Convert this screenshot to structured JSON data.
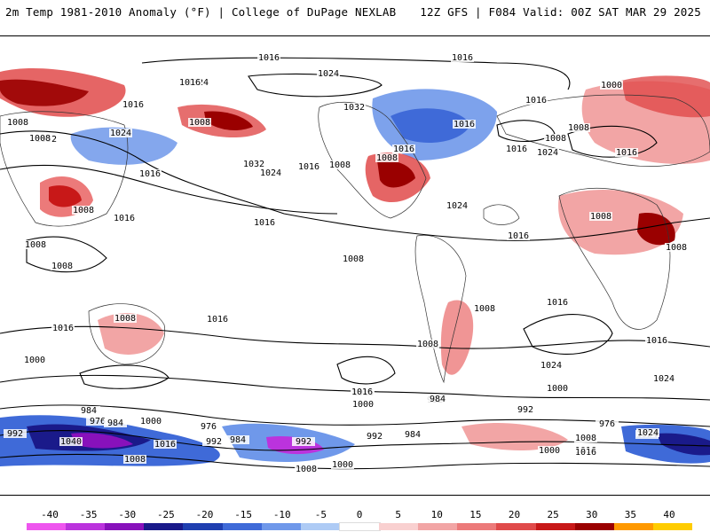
{
  "header": {
    "title": "2m Temp 1981-2010 Anomaly (°F) | College of DuPage NEXLAB",
    "run_info": "12Z GFS | F084 Valid: 00Z SAT MAR 29 2025"
  },
  "map": {
    "contour_labels": [
      "1016",
      "1016",
      "1024",
      "1000",
      "1008",
      "1024",
      "1032",
      "1016",
      "1016",
      "1016",
      "1008",
      "1032",
      "1008",
      "1024",
      "1008",
      "1016",
      "1032",
      "1024",
      "1016",
      "1008",
      "1008",
      "1016",
      "1016",
      "1016",
      "1024",
      "1008",
      "1008",
      "1024",
      "1016",
      "1008",
      "1008",
      "1008",
      "1008",
      "1016",
      "1016",
      "1008",
      "1016",
      "1016",
      "1016",
      "1024",
      "1000",
      "1016",
      "1008",
      "1016",
      "1000",
      "1016",
      "1024",
      "1000",
      "1008",
      "992",
      "984",
      "976",
      "984",
      "1000",
      "992",
      "976",
      "984",
      "992",
      "1040",
      "1016",
      "1008",
      "992",
      "984",
      "992",
      "1016",
      "1008",
      "1000",
      "1008",
      "1016",
      "1024",
      "984",
      "976",
      "992",
      "1008",
      "1016",
      "1000",
      "1024"
    ]
  },
  "colorbar": {
    "labels": [
      "-40",
      "-35",
      "-30",
      "-25",
      "-20",
      "-15",
      "-10",
      "-5",
      "0",
      "5",
      "10",
      "15",
      "20",
      "25",
      "30",
      "35",
      "40"
    ],
    "colors": [
      "#ee55ee",
      "#bb33dd",
      "#8811bb",
      "#1a1a8a",
      "#1f3fb0",
      "#3f6ad8",
      "#6f98ea",
      "#aecbf5",
      "#ffffff",
      "#f9d0d0",
      "#f2a5a5",
      "#ec7a7a",
      "#e04a4a",
      "#c81818",
      "#9a0000",
      "#ff9900",
      "#ffcc00"
    ]
  }
}
